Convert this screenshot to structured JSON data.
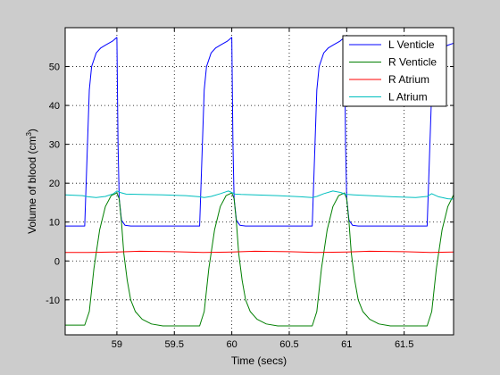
{
  "chart_data": {
    "type": "line",
    "title": "",
    "xlabel": "Time (secs)",
    "ylabel": "Volume of blood (cm",
    "ylabel_sup": "3",
    "ylabel_close": ")",
    "xlim": [
      58.55,
      61.93
    ],
    "ylim": [
      -19,
      60
    ],
    "x_ticks": [
      59,
      59.5,
      60,
      60.5,
      61,
      61.5
    ],
    "x_tick_labels": [
      "59",
      "59.5",
      "60",
      "60.5",
      "61",
      "61.5"
    ],
    "y_ticks": [
      -10,
      0,
      10,
      20,
      30,
      40,
      50
    ],
    "y_tick_labels": [
      "-10",
      "0",
      "10",
      "20",
      "30",
      "40",
      "50"
    ],
    "grid": true,
    "grid_style": "dotted",
    "background": "#ffffff",
    "legend_position": "top-right",
    "series": [
      {
        "name": "L Venticle",
        "color": "#0000ff",
        "x": [
          58.55,
          58.72,
          58.76,
          58.78,
          58.82,
          58.86,
          58.9,
          58.96,
          59.0,
          59.01,
          59.02,
          59.04,
          59.07,
          59.12,
          59.72,
          59.76,
          59.78,
          59.82,
          59.86,
          59.9,
          59.96,
          60.0,
          60.01,
          60.02,
          60.04,
          60.07,
          60.12,
          60.7,
          60.74,
          60.76,
          60.8,
          60.84,
          60.88,
          60.94,
          60.98,
          60.99,
          61.0,
          61.02,
          61.05,
          61.1,
          61.7,
          61.74,
          61.76,
          61.8,
          61.84,
          61.88,
          61.93
        ],
        "y": [
          9,
          9,
          44,
          50,
          53.5,
          54.8,
          55.5,
          56.5,
          57.5,
          30,
          16,
          10.5,
          9.2,
          9,
          9,
          44,
          50,
          53.5,
          54.8,
          55.5,
          56.5,
          57.5,
          30,
          16,
          10.5,
          9.2,
          9,
          9,
          44,
          50,
          53.5,
          54.8,
          55.5,
          56.5,
          57.5,
          30,
          16,
          10.5,
          9.2,
          9,
          9,
          44,
          50,
          53.5,
          54.8,
          55.5,
          56
        ]
      },
      {
        "name": "R Venticle",
        "color": "#007f00",
        "x": [
          58.55,
          58.72,
          58.76,
          58.8,
          58.85,
          58.9,
          58.95,
          59.0,
          59.02,
          59.04,
          59.06,
          59.09,
          59.12,
          59.16,
          59.22,
          59.3,
          59.4,
          59.72,
          59.76,
          59.8,
          59.85,
          59.9,
          59.95,
          60.0,
          60.02,
          60.04,
          60.06,
          60.09,
          60.12,
          60.16,
          60.22,
          60.3,
          60.4,
          60.7,
          60.74,
          60.78,
          60.83,
          60.88,
          60.93,
          60.98,
          61.0,
          61.02,
          61.04,
          61.07,
          61.1,
          61.14,
          61.2,
          61.28,
          61.38,
          61.7,
          61.74,
          61.78,
          61.83,
          61.88,
          61.93
        ],
        "y": [
          -16.5,
          -16.5,
          -13,
          -2,
          8,
          14,
          16.8,
          17.5,
          16,
          10,
          2,
          -5,
          -10,
          -13,
          -15,
          -16.2,
          -16.7,
          -16.7,
          -13,
          -2,
          8,
          14,
          16.8,
          17.5,
          16,
          10,
          2,
          -5,
          -10,
          -13,
          -15,
          -16.2,
          -16.7,
          -16.7,
          -13,
          -2,
          8,
          14,
          16.8,
          17.5,
          16,
          10,
          2,
          -5,
          -10,
          -13,
          -15,
          -16.2,
          -16.7,
          -16.7,
          -13,
          -2,
          8,
          14,
          17
        ]
      },
      {
        "name": "R Atrium",
        "color": "#ff0000",
        "x": [
          58.55,
          58.75,
          59.0,
          59.2,
          59.5,
          59.75,
          60.0,
          60.2,
          60.5,
          60.73,
          61.0,
          61.2,
          61.5,
          61.73,
          61.93
        ],
        "y": [
          2.2,
          2.2,
          2.3,
          2.5,
          2.4,
          2.2,
          2.3,
          2.5,
          2.4,
          2.2,
          2.3,
          2.5,
          2.4,
          2.2,
          2.3
        ]
      },
      {
        "name": "L Atrium",
        "color": "#00bfbf",
        "x": [
          58.55,
          58.7,
          58.75,
          58.82,
          58.9,
          58.97,
          59.0,
          59.03,
          59.08,
          59.2,
          59.4,
          59.6,
          59.72,
          59.76,
          59.82,
          59.9,
          59.97,
          60.0,
          60.03,
          60.08,
          60.2,
          60.4,
          60.6,
          60.7,
          60.74,
          60.8,
          60.88,
          60.95,
          60.98,
          61.01,
          61.06,
          61.2,
          61.4,
          61.6,
          61.7,
          61.74,
          61.8,
          61.88,
          61.93
        ],
        "y": [
          17,
          16.8,
          16.5,
          16.3,
          16.6,
          17.3,
          18,
          17.6,
          17.2,
          17.1,
          17,
          16.8,
          16.5,
          16.3,
          16.6,
          17.3,
          18,
          17.6,
          17.2,
          17.1,
          17,
          16.8,
          16.5,
          16.3,
          16.6,
          17.3,
          18,
          17.6,
          17.2,
          17.1,
          17,
          16.8,
          16.5,
          16.3,
          16.6,
          17.3,
          16.5,
          16,
          15.9
        ]
      }
    ]
  }
}
